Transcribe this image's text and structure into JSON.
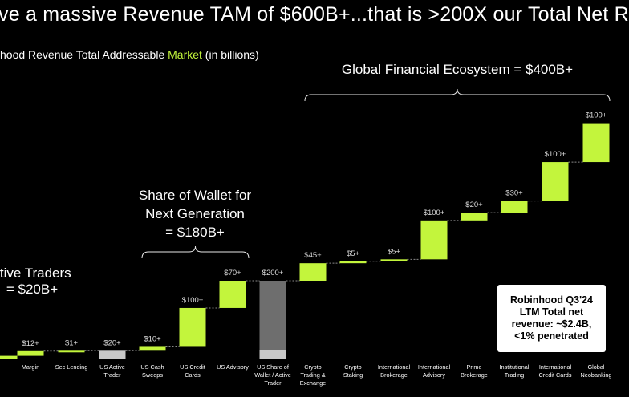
{
  "slide": {
    "headline": "ve a massive Revenue TAM of $600B+...that is >200X our Total Net R",
    "subtitle_prefix": "hood Revenue Total Addressable ",
    "subtitle_accent": "Market",
    "subtitle_suffix": " (in billions)"
  },
  "callout": {
    "text": "Robinhood Q3'24 LTM Total net revenue: ~$2.4B, <1% penetrated"
  },
  "groups": [
    {
      "label_lines": [
        "ctive Traders",
        "= $20B+"
      ]
    },
    {
      "label_lines": [
        "Share of Wallet for",
        "Next Generation",
        "= $180B+"
      ]
    },
    {
      "label_lines": [
        "Global Financial Ecosystem = $400B+"
      ]
    }
  ],
  "colors": {
    "accent": "#c3f53c",
    "gray_total": "#6e6e6e",
    "light_gray": "#c8c8c8",
    "background": "#000000"
  },
  "chart_data": {
    "type": "bar",
    "subtype": "waterfall",
    "unit": "$B",
    "categories": [
      "",
      "Margin",
      "Sec Lending",
      "US Active Trader",
      "US Cash Sweeps",
      "US Credit Cards",
      "US Advisory",
      "US Share of Wallet / Active Trader",
      "Crypto Trading & Exchange",
      "Crypto Staking",
      "International Brokerage",
      "International Advisory",
      "Prime Brokerage",
      "Institutional Trading",
      "International Credit Cards",
      "Global Neobanking"
    ],
    "category_labels": [
      [
        ""
      ],
      [
        "Margin"
      ],
      [
        "Sec Lending"
      ],
      [
        "US Active",
        "Trader"
      ],
      [
        "US Cash",
        "Sweeps"
      ],
      [
        "US Credit",
        "Cards"
      ],
      [
        "US Advisory"
      ],
      [
        "US Share of",
        "Wallet / Active",
        "Trader"
      ],
      [
        "Crypto",
        "Trading &",
        "Exchange"
      ],
      [
        "Crypto",
        "Staking"
      ],
      [
        "International",
        "Brokerage"
      ],
      [
        "International",
        "Advisory"
      ],
      [
        "Prime",
        "Brokerage"
      ],
      [
        "Institutional",
        "Trading"
      ],
      [
        "International",
        "Credit Cards"
      ],
      [
        "Global",
        "Neobanking"
      ]
    ],
    "data_labels": [
      "",
      "$12+",
      "$1+",
      "$20+",
      "$10+",
      "$100+",
      "$70+",
      "$200+",
      "$45+",
      "$5+",
      "$5+",
      "$100+",
      "$20+",
      "$30+",
      "$100+",
      "$100+"
    ],
    "values": [
      7,
      12,
      1,
      20,
      10,
      100,
      70,
      200,
      45,
      5,
      5,
      100,
      20,
      30,
      100,
      100
    ],
    "bar_kind": [
      "increment",
      "increment",
      "increment",
      "subtotal",
      "increment",
      "increment",
      "increment",
      "total",
      "increment",
      "increment",
      "increment",
      "increment",
      "increment",
      "increment",
      "increment",
      "increment"
    ]
  }
}
